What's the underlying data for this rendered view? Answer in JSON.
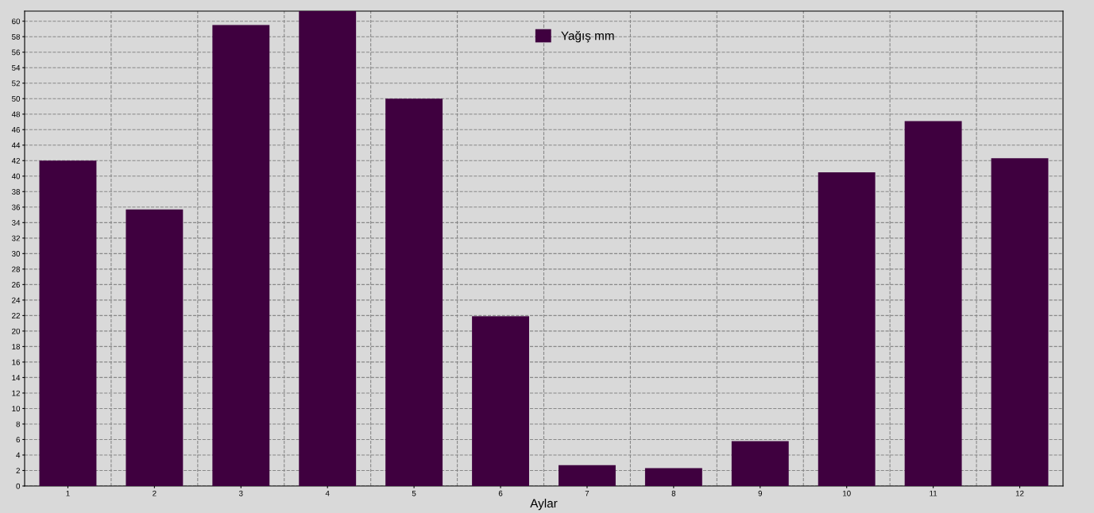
{
  "chart_data": {
    "type": "bar",
    "xlabel": "Aylar",
    "categories": [
      "1",
      "2",
      "3",
      "4",
      "5",
      "6",
      "7",
      "8",
      "9",
      "10",
      "11",
      "12"
    ],
    "series": [
      {
        "name": "Yağış mm",
        "color": "#3f003f",
        "values": [
          42,
          35.7,
          59.5,
          61.3,
          50,
          21.9,
          2.7,
          2.3,
          5.8,
          40.5,
          47.1,
          42.3
        ]
      }
    ],
    "ylim": [
      0,
      61.3
    ],
    "yticks": [
      0,
      2,
      4,
      6,
      8,
      10,
      12,
      14,
      16,
      18,
      20,
      22,
      24,
      26,
      28,
      30,
      32,
      34,
      36,
      38,
      40,
      42,
      44,
      46,
      48,
      50,
      52,
      54,
      56,
      58,
      60
    ],
    "grid": true,
    "legend": "top"
  }
}
